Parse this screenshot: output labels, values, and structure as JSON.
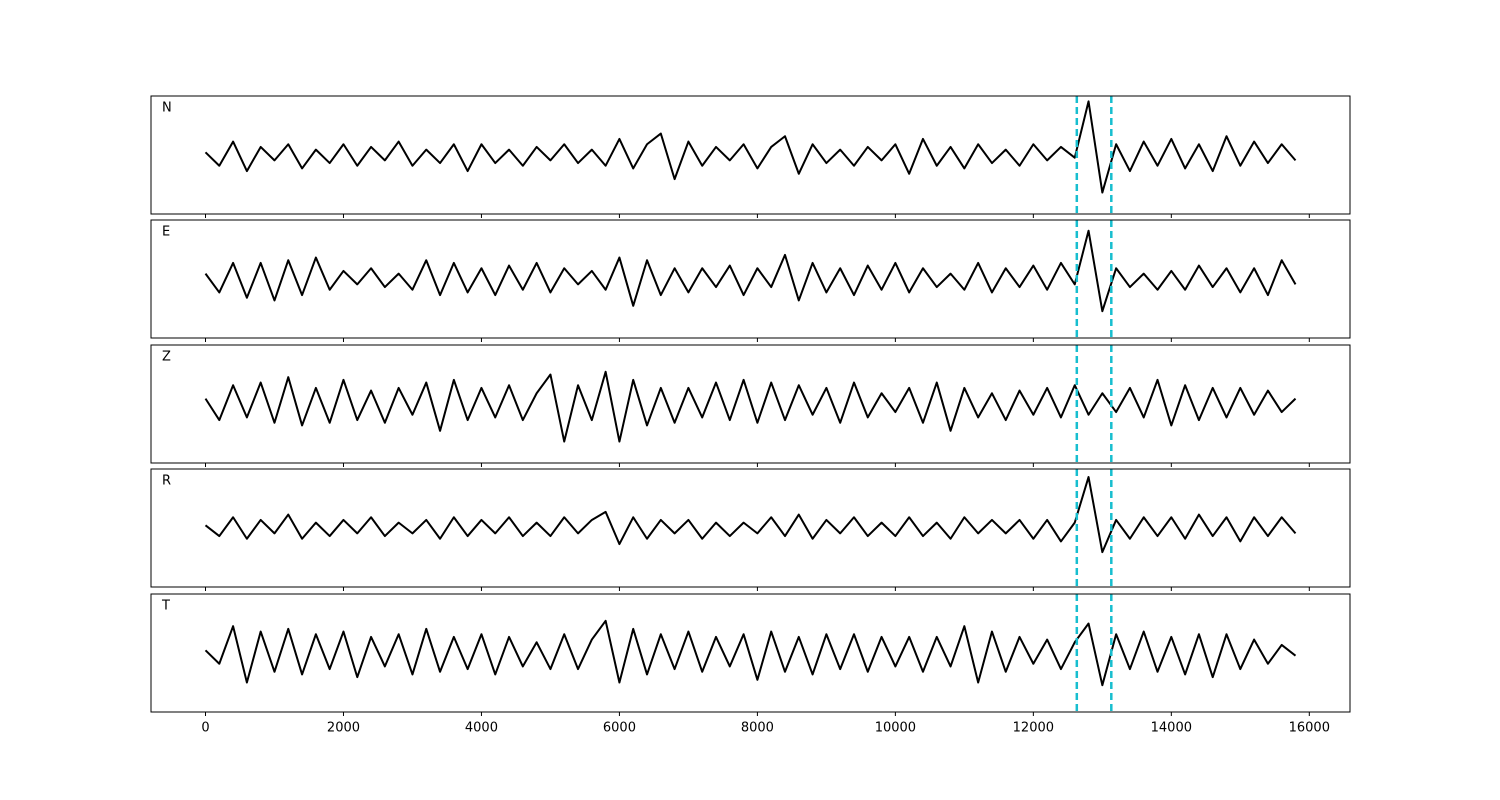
{
  "chart_data": {
    "type": "line",
    "color": "#000000",
    "line_width": 2,
    "x": [
      0,
      200,
      400,
      600,
      800,
      1000,
      1200,
      1400,
      1600,
      1800,
      2000,
      2200,
      2400,
      2600,
      2800,
      3000,
      3200,
      3400,
      3600,
      3800,
      4000,
      4200,
      4400,
      4600,
      4800,
      5000,
      5200,
      5400,
      5600,
      5800,
      6000,
      6200,
      6400,
      6600,
      6800,
      7000,
      7200,
      7400,
      7600,
      7800,
      8000,
      8200,
      8400,
      8600,
      8800,
      9000,
      9200,
      9400,
      9600,
      9800,
      10000,
      10200,
      10400,
      10600,
      10800,
      11000,
      11200,
      11400,
      11600,
      11800,
      12000,
      12200,
      12400,
      12600,
      12800,
      13000,
      13200,
      13400,
      13600,
      13800,
      14000,
      14200,
      14400,
      14600,
      14800,
      15000,
      15200,
      15400,
      15600,
      15800
    ],
    "series": [
      {
        "name": "N",
        "values": [
          0.05,
          -0.2,
          0.25,
          -0.3,
          0.15,
          -0.1,
          0.2,
          -0.25,
          0.1,
          -0.15,
          0.2,
          -0.2,
          0.15,
          -0.1,
          0.25,
          -0.2,
          0.1,
          -0.15,
          0.2,
          -0.3,
          0.2,
          -0.15,
          0.1,
          -0.2,
          0.15,
          -0.1,
          0.2,
          -0.15,
          0.1,
          -0.2,
          0.3,
          -0.25,
          0.2,
          0.4,
          -0.45,
          0.25,
          -0.2,
          0.15,
          -0.1,
          0.2,
          -0.25,
          0.15,
          0.35,
          -0.35,
          0.2,
          -0.15,
          0.1,
          -0.2,
          0.15,
          -0.1,
          0.2,
          -0.35,
          0.3,
          -0.2,
          0.15,
          -0.25,
          0.2,
          -0.15,
          0.1,
          -0.2,
          0.2,
          -0.1,
          0.15,
          -0.05,
          1.0,
          -0.7,
          0.2,
          -0.3,
          0.25,
          -0.2,
          0.3,
          -0.25,
          0.2,
          -0.3,
          0.35,
          -0.2,
          0.25,
          -0.15,
          0.2,
          -0.1
        ]
      },
      {
        "name": "E",
        "values": [
          0.1,
          -0.25,
          0.3,
          -0.35,
          0.3,
          -0.4,
          0.35,
          -0.3,
          0.4,
          -0.2,
          0.15,
          -0.1,
          0.2,
          -0.15,
          0.1,
          -0.2,
          0.35,
          -0.3,
          0.3,
          -0.25,
          0.2,
          -0.3,
          0.25,
          -0.2,
          0.3,
          -0.25,
          0.2,
          -0.1,
          0.15,
          -0.2,
          0.4,
          -0.5,
          0.35,
          -0.3,
          0.2,
          -0.25,
          0.2,
          -0.15,
          0.25,
          -0.3,
          0.2,
          -0.15,
          0.45,
          -0.4,
          0.3,
          -0.25,
          0.2,
          -0.3,
          0.25,
          -0.2,
          0.3,
          -0.25,
          0.2,
          -0.15,
          0.1,
          -0.2,
          0.3,
          -0.25,
          0.2,
          -0.15,
          0.25,
          -0.2,
          0.3,
          -0.1,
          0.9,
          -0.6,
          0.2,
          -0.15,
          0.1,
          -0.2,
          0.15,
          -0.2,
          0.25,
          -0.15,
          0.2,
          -0.25,
          0.2,
          -0.3,
          0.35,
          -0.1
        ]
      },
      {
        "name": "Z",
        "values": [
          0.1,
          -0.3,
          0.35,
          -0.25,
          0.4,
          -0.35,
          0.5,
          -0.4,
          0.3,
          -0.35,
          0.45,
          -0.3,
          0.25,
          -0.35,
          0.3,
          -0.2,
          0.4,
          -0.5,
          0.45,
          -0.3,
          0.3,
          -0.25,
          0.35,
          -0.3,
          0.2,
          0.55,
          -0.7,
          0.35,
          -0.3,
          0.6,
          -0.7,
          0.45,
          -0.4,
          0.3,
          -0.35,
          0.3,
          -0.25,
          0.4,
          -0.3,
          0.45,
          -0.35,
          0.4,
          -0.3,
          0.35,
          -0.2,
          0.3,
          -0.35,
          0.4,
          -0.25,
          0.2,
          -0.15,
          0.3,
          -0.35,
          0.4,
          -0.5,
          0.3,
          -0.25,
          0.2,
          -0.3,
          0.25,
          -0.2,
          0.3,
          -0.25,
          0.35,
          -0.2,
          0.2,
          -0.15,
          0.3,
          -0.25,
          0.45,
          -0.4,
          0.35,
          -0.3,
          0.3,
          -0.25,
          0.3,
          -0.2,
          0.25,
          -0.15,
          0.1
        ]
      },
      {
        "name": "R",
        "values": [
          0.05,
          -0.15,
          0.2,
          -0.2,
          0.15,
          -0.1,
          0.25,
          -0.2,
          0.1,
          -0.15,
          0.15,
          -0.1,
          0.2,
          -0.15,
          0.1,
          -0.1,
          0.15,
          -0.2,
          0.2,
          -0.15,
          0.15,
          -0.1,
          0.2,
          -0.15,
          0.1,
          -0.15,
          0.2,
          -0.1,
          0.15,
          0.3,
          -0.3,
          0.2,
          -0.2,
          0.15,
          -0.1,
          0.15,
          -0.2,
          0.1,
          -0.15,
          0.1,
          -0.1,
          0.2,
          -0.15,
          0.25,
          -0.2,
          0.15,
          -0.1,
          0.2,
          -0.15,
          0.1,
          -0.15,
          0.2,
          -0.15,
          0.1,
          -0.2,
          0.2,
          -0.1,
          0.15,
          -0.1,
          0.15,
          -0.2,
          0.15,
          -0.25,
          0.1,
          0.95,
          -0.45,
          0.15,
          -0.2,
          0.2,
          -0.15,
          0.2,
          -0.2,
          0.25,
          -0.15,
          0.2,
          -0.25,
          0.2,
          -0.15,
          0.2,
          -0.1
        ]
      },
      {
        "name": "T",
        "values": [
          0.05,
          -0.2,
          0.5,
          -0.55,
          0.4,
          -0.35,
          0.45,
          -0.4,
          0.35,
          -0.3,
          0.4,
          -0.45,
          0.3,
          -0.25,
          0.35,
          -0.4,
          0.45,
          -0.35,
          0.3,
          -0.3,
          0.35,
          -0.4,
          0.3,
          -0.25,
          0.2,
          -0.3,
          0.35,
          -0.3,
          0.25,
          0.6,
          -0.55,
          0.45,
          -0.4,
          0.35,
          -0.3,
          0.4,
          -0.35,
          0.3,
          -0.25,
          0.35,
          -0.5,
          0.4,
          -0.35,
          0.3,
          -0.4,
          0.35,
          -0.3,
          0.35,
          -0.35,
          0.3,
          -0.25,
          0.3,
          -0.35,
          0.3,
          -0.25,
          0.5,
          -0.55,
          0.4,
          -0.35,
          0.3,
          -0.2,
          0.25,
          -0.3,
          0.2,
          0.55,
          -0.6,
          0.35,
          -0.3,
          0.4,
          -0.35,
          0.3,
          -0.4,
          0.35,
          -0.45,
          0.35,
          -0.3,
          0.25,
          -0.2,
          0.15,
          -0.05
        ]
      }
    ],
    "xlim": [
      -790,
      16590
    ],
    "xticks": [
      0,
      2000,
      4000,
      6000,
      8000,
      10000,
      12000,
      14000,
      16000
    ],
    "ylim": [
      -1.1,
      1.1
    ],
    "vlines": [
      12630,
      13130
    ],
    "vline_color": "#17becf"
  }
}
